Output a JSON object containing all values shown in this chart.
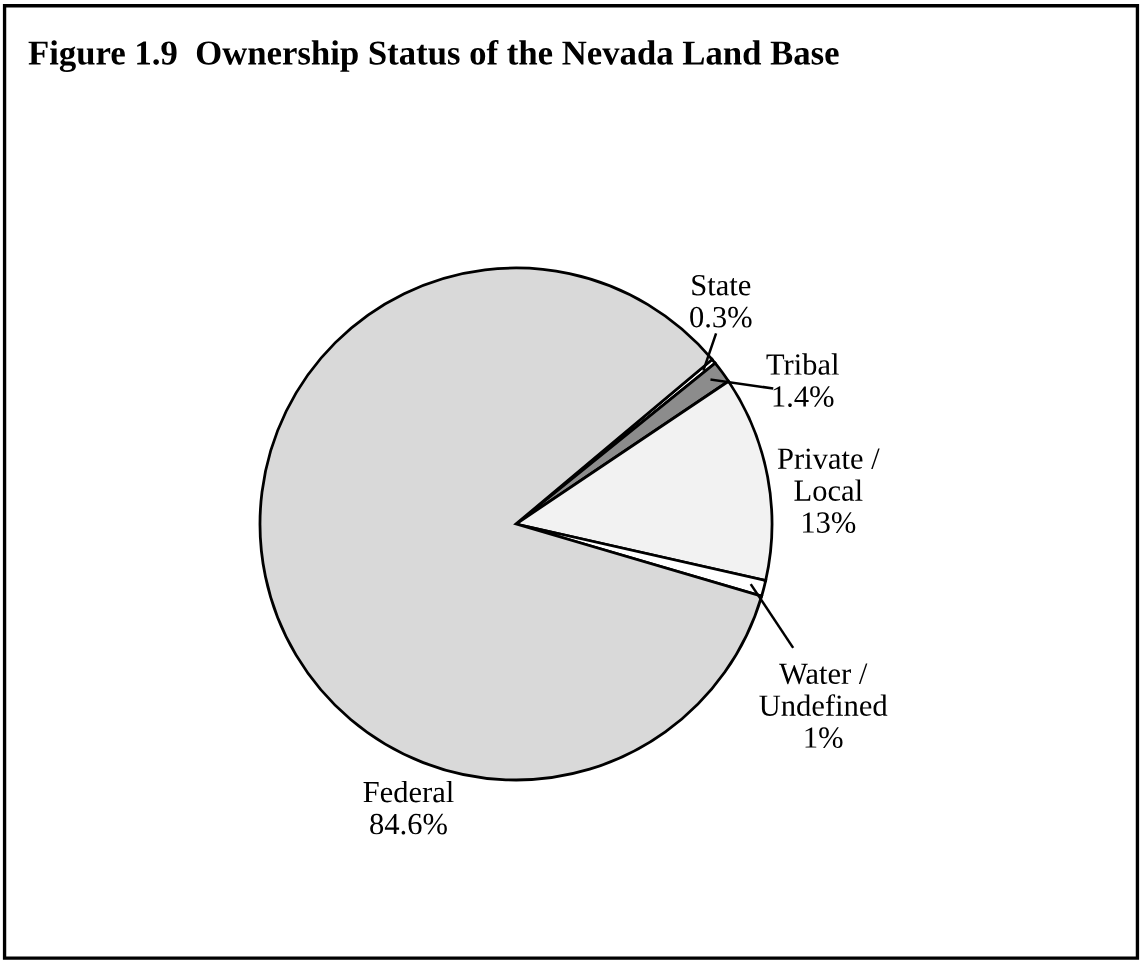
{
  "chart_data": {
    "type": "pie",
    "title": "Figure 1.9  Ownership Status of the Nevada Land Base",
    "categories": [
      "State",
      "Tribal",
      "Private /\nLocal",
      "Water /\nUndefined",
      "Federal"
    ],
    "values": [
      0.3,
      1.4,
      13,
      1,
      84.6
    ],
    "value_labels": [
      "0.3%",
      "1.4%",
      "13%",
      "1%",
      "84.6%"
    ],
    "colors": [
      "#ffffff",
      "#8c8c8c",
      "#f2f2f2",
      "#ffffff",
      "#d9d9d9"
    ]
  }
}
